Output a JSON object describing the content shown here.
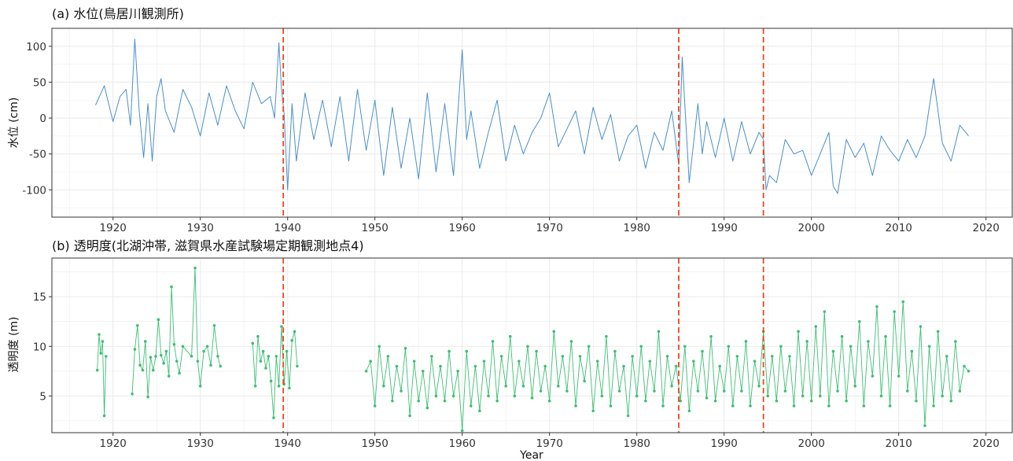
{
  "chart_data": [
    {
      "type": "line",
      "title": "(a) 水位(鳥居川観測所)",
      "xlabel": "",
      "ylabel": "水位 (cm)",
      "xlim": [
        1913,
        2023
      ],
      "ylim": [
        -138,
        125
      ],
      "x_ticks": [
        1920,
        1930,
        1940,
        1950,
        1960,
        1970,
        1980,
        1990,
        2000,
        2010,
        2020
      ],
      "y_ticks": [
        -100,
        -50,
        0,
        50,
        100
      ],
      "grid": true,
      "series": [
        {
          "color": "#4a8fc9",
          "x": [
            1918.0,
            1919.0,
            1920.0,
            1920.8,
            1921.5,
            1922.0,
            1922.5,
            1923.0,
            1923.5,
            1924.0,
            1924.5,
            1925.0,
            1925.5,
            1926.0,
            1927.0,
            1928.0,
            1929.0,
            1930.0,
            1931.0,
            1932.0,
            1933.0,
            1934.0,
            1935.0,
            1936.0,
            1937.0,
            1938.0,
            1938.5,
            1939.0,
            1939.3,
            1939.6,
            1940.0,
            1940.5,
            1941.0,
            1942.0,
            1943.0,
            1944.0,
            1945.0,
            1946.0,
            1947.0,
            1948.0,
            1949.0,
            1950.0,
            1951.0,
            1952.0,
            1953.0,
            1954.0,
            1955.0,
            1956.0,
            1957.0,
            1958.0,
            1959.0,
            1960.0,
            1960.5,
            1961.0,
            1962.0,
            1963.0,
            1964.0,
            1965.0,
            1966.0,
            1967.0,
            1968.0,
            1969.0,
            1970.0,
            1971.0,
            1972.0,
            1973.0,
            1974.0,
            1975.0,
            1976.0,
            1977.0,
            1978.0,
            1979.0,
            1980.0,
            1981.0,
            1982.0,
            1983.0,
            1984.0,
            1984.8,
            1985.2,
            1986.0,
            1987.0,
            1987.5,
            1988.0,
            1989.0,
            1990.0,
            1991.0,
            1992.0,
            1993.0,
            1994.0,
            1994.5,
            1994.8,
            1995.2,
            1996.0,
            1997.0,
            1998.0,
            1999.0,
            2000.0,
            2001.0,
            2002.0,
            2002.5,
            2003.0,
            2004.0,
            2005.0,
            2006.0,
            2007.0,
            2008.0,
            2009.0,
            2010.0,
            2011.0,
            2012.0,
            2013.0,
            2014.0,
            2015.0,
            2016.0,
            2017.0,
            2018.0
          ],
          "y": [
            18,
            45,
            -5,
            30,
            40,
            -10,
            110,
            10,
            -55,
            20,
            -60,
            30,
            55,
            10,
            -20,
            40,
            15,
            -25,
            35,
            -10,
            45,
            10,
            -15,
            50,
            20,
            30,
            0,
            105,
            40,
            5,
            -100,
            20,
            -60,
            35,
            -30,
            25,
            -40,
            30,
            -60,
            40,
            -45,
            25,
            -80,
            15,
            -70,
            0,
            -85,
            35,
            -75,
            20,
            -80,
            95,
            -30,
            10,
            -70,
            -20,
            25,
            -60,
            -10,
            -50,
            -20,
            0,
            35,
            -40,
            -15,
            10,
            -50,
            15,
            -30,
            5,
            -60,
            -25,
            -10,
            -70,
            -20,
            -45,
            10,
            -65,
            85,
            -90,
            20,
            -50,
            -5,
            -55,
            0,
            -60,
            -5,
            -50,
            -20,
            -30,
            -100,
            -80,
            -90,
            -30,
            -50,
            -45,
            -80,
            -50,
            -20,
            -95,
            -105,
            -30,
            -55,
            -35,
            -80,
            -25,
            -45,
            -60,
            -30,
            -55,
            -25,
            55,
            -35,
            -60,
            -10,
            -25
          ]
        }
      ],
      "vlines": [
        1939.5,
        1984.8,
        1994.5
      ]
    },
    {
      "type": "line",
      "title": "(b) 透明度(北湖沖帯, 滋賀県水産試験場定期観測地点4)",
      "xlabel": "Year",
      "ylabel": "透明度 (m)",
      "xlim": [
        1913,
        2023
      ],
      "ylim": [
        1.3,
        18.9
      ],
      "x_ticks": [
        1920,
        1930,
        1940,
        1950,
        1960,
        1970,
        1980,
        1990,
        2000,
        2010,
        2020
      ],
      "y_ticks": [
        5,
        10,
        15
      ],
      "grid": true,
      "series": [
        {
          "color": "#3dbf74",
          "segments": [
            {
              "x": [
                1918.2,
                1918.4,
                1918.6,
                1918.8,
                1919.0,
                1919.2
              ],
              "y": [
                7.6,
                11.2,
                9.3,
                10.5,
                3.0,
                9.0
              ]
            },
            {
              "x": [
                1922.2,
                1922.5,
                1922.8,
                1923.1,
                1923.4,
                1923.7,
                1924.0,
                1924.3,
                1924.6,
                1924.9,
                1925.2,
                1925.5,
                1925.8,
                1926.1,
                1926.4,
                1926.7,
                1927.0,
                1927.3,
                1927.6,
                1928.0,
                1929.0,
                1929.4,
                1929.7,
                1930.0,
                1930.4,
                1930.8,
                1931.2,
                1931.6,
                1932.0,
                1932.3
              ],
              "y": [
                5.2,
                9.7,
                12.1,
                8.1,
                7.6,
                10.5,
                4.9,
                8.9,
                7.6,
                9.0,
                12.7,
                9.1,
                8.3,
                9.5,
                7.0,
                16.0,
                10.2,
                8.5,
                7.3,
                10.0,
                9.0,
                17.9,
                8.5,
                6.0,
                9.5,
                10.0,
                8.1,
                12.1,
                9.0,
                8.0
              ]
            },
            {
              "x": [
                1936.0,
                1936.3,
                1936.6,
                1936.9,
                1937.2,
                1937.5,
                1937.8,
                1938.1,
                1938.4,
                1938.7,
                1939.0,
                1939.3,
                1939.6,
                1939.9,
                1940.2,
                1940.5,
                1940.8,
                1941.1
              ],
              "y": [
                10.3,
                6.0,
                11.0,
                8.5,
                9.5,
                7.8,
                9.0,
                6.5,
                2.8,
                9.0,
                6.0,
                12.0,
                6.2,
                9.5,
                5.8,
                10.6,
                11.5,
                8.0
              ]
            },
            {
              "x": [
                1949.0,
                1949.5,
                1950.0,
                1950.5,
                1951.0,
                1951.5,
                1952.0,
                1952.5,
                1953.0,
                1953.5,
                1954.0,
                1954.5,
                1955.0,
                1955.5,
                1956.0,
                1956.5,
                1957.0,
                1957.5,
                1958.0,
                1958.5,
                1959.0,
                1959.5,
                1960.0,
                1960.5,
                1961.0,
                1961.5,
                1962.0,
                1962.5,
                1963.0,
                1963.5,
                1964.0,
                1964.5,
                1965.0,
                1965.5,
                1966.0,
                1966.5,
                1967.0,
                1967.5,
                1968.0,
                1968.5,
                1969.0,
                1969.5,
                1970.0,
                1970.5,
                1971.0,
                1971.5,
                1972.0,
                1972.5,
                1973.0,
                1973.5,
                1974.0,
                1974.5,
                1975.0,
                1975.5,
                1976.0,
                1976.5,
                1977.0,
                1977.5,
                1978.0,
                1978.5,
                1979.0,
                1979.5,
                1980.0,
                1980.5,
                1981.0,
                1981.5,
                1982.0,
                1982.5,
                1983.0,
                1983.5,
                1984.0,
                1984.5,
                1985.0,
                1985.5,
                1986.0,
                1986.5,
                1987.0,
                1987.5,
                1988.0,
                1988.5,
                1989.0,
                1989.5,
                1990.0,
                1990.5,
                1991.0,
                1991.5,
                1992.0,
                1992.5,
                1993.0,
                1993.5,
                1994.0,
                1994.5,
                1995.0,
                1995.5,
                1996.0,
                1996.5,
                1997.0,
                1997.5,
                1998.0,
                1998.5,
                1999.0,
                1999.5,
                2000.0,
                2000.5,
                2001.0,
                2001.5,
                2002.0,
                2002.5,
                2003.0,
                2003.5,
                2004.0,
                2004.5,
                2005.0,
                2005.5,
                2006.0,
                2006.5,
                2007.0,
                2007.5,
                2008.0,
                2008.5,
                2009.0,
                2009.5,
                2010.0,
                2010.5,
                2011.0,
                2011.5,
                2012.0,
                2012.5,
                2013.0,
                2013.5,
                2014.0,
                2014.5,
                2015.0,
                2015.5,
                2016.0,
                2016.5,
                2017.0,
                2017.5,
                2018.0
              ],
              "y": [
                7.5,
                8.5,
                4.0,
                10.0,
                6.0,
                9.0,
                4.5,
                8.0,
                5.5,
                9.8,
                3.0,
                8.5,
                4.5,
                7.5,
                3.8,
                9.0,
                5.0,
                8.0,
                4.5,
                9.5,
                5.0,
                7.5,
                1.5,
                9.5,
                4.0,
                8.0,
                3.5,
                8.5,
                5.0,
                10.5,
                4.5,
                9.0,
                6.0,
                11.0,
                5.0,
                8.5,
                6.0,
                10.0,
                4.8,
                9.5,
                5.5,
                8.0,
                4.5,
                11.5,
                6.0,
                9.0,
                5.5,
                10.5,
                4.0,
                9.0,
                6.5,
                10.0,
                3.5,
                8.5,
                5.0,
                11.0,
                4.0,
                9.5,
                5.5,
                8.0,
                3.0,
                9.0,
                5.0,
                10.0,
                4.5,
                8.5,
                5.5,
                11.5,
                4.0,
                9.0,
                6.0,
                8.0,
                4.5,
                10.0,
                3.5,
                8.5,
                5.5,
                9.5,
                4.8,
                11.0,
                4.5,
                8.0,
                5.5,
                10.0,
                4.0,
                9.0,
                5.5,
                10.5,
                4.0,
                8.5,
                6.0,
                11.5,
                5.0,
                9.0,
                4.5,
                10.0,
                5.5,
                9.0,
                4.0,
                11.5,
                5.0,
                10.5,
                4.5,
                12.0,
                5.0,
                13.5,
                4.0,
                9.5,
                5.5,
                11.0,
                4.5,
                10.0,
                6.0,
                12.5,
                4.0,
                10.5,
                7.0,
                14.0,
                5.0,
                11.0,
                4.0,
                13.5,
                7.0,
                14.5,
                5.5,
                9.5,
                4.5,
                12.0,
                2.0,
                10.0,
                4.0,
                11.5,
                5.0,
                9.0,
                4.5,
                10.5,
                5.5,
                8.0,
                7.5
              ]
            }
          ]
        }
      ],
      "vlines": [
        1939.5,
        1984.8,
        1994.5
      ]
    }
  ],
  "colors": {
    "vline": "#f0461e",
    "grid": "#ebebeb",
    "frame": "#333333"
  }
}
